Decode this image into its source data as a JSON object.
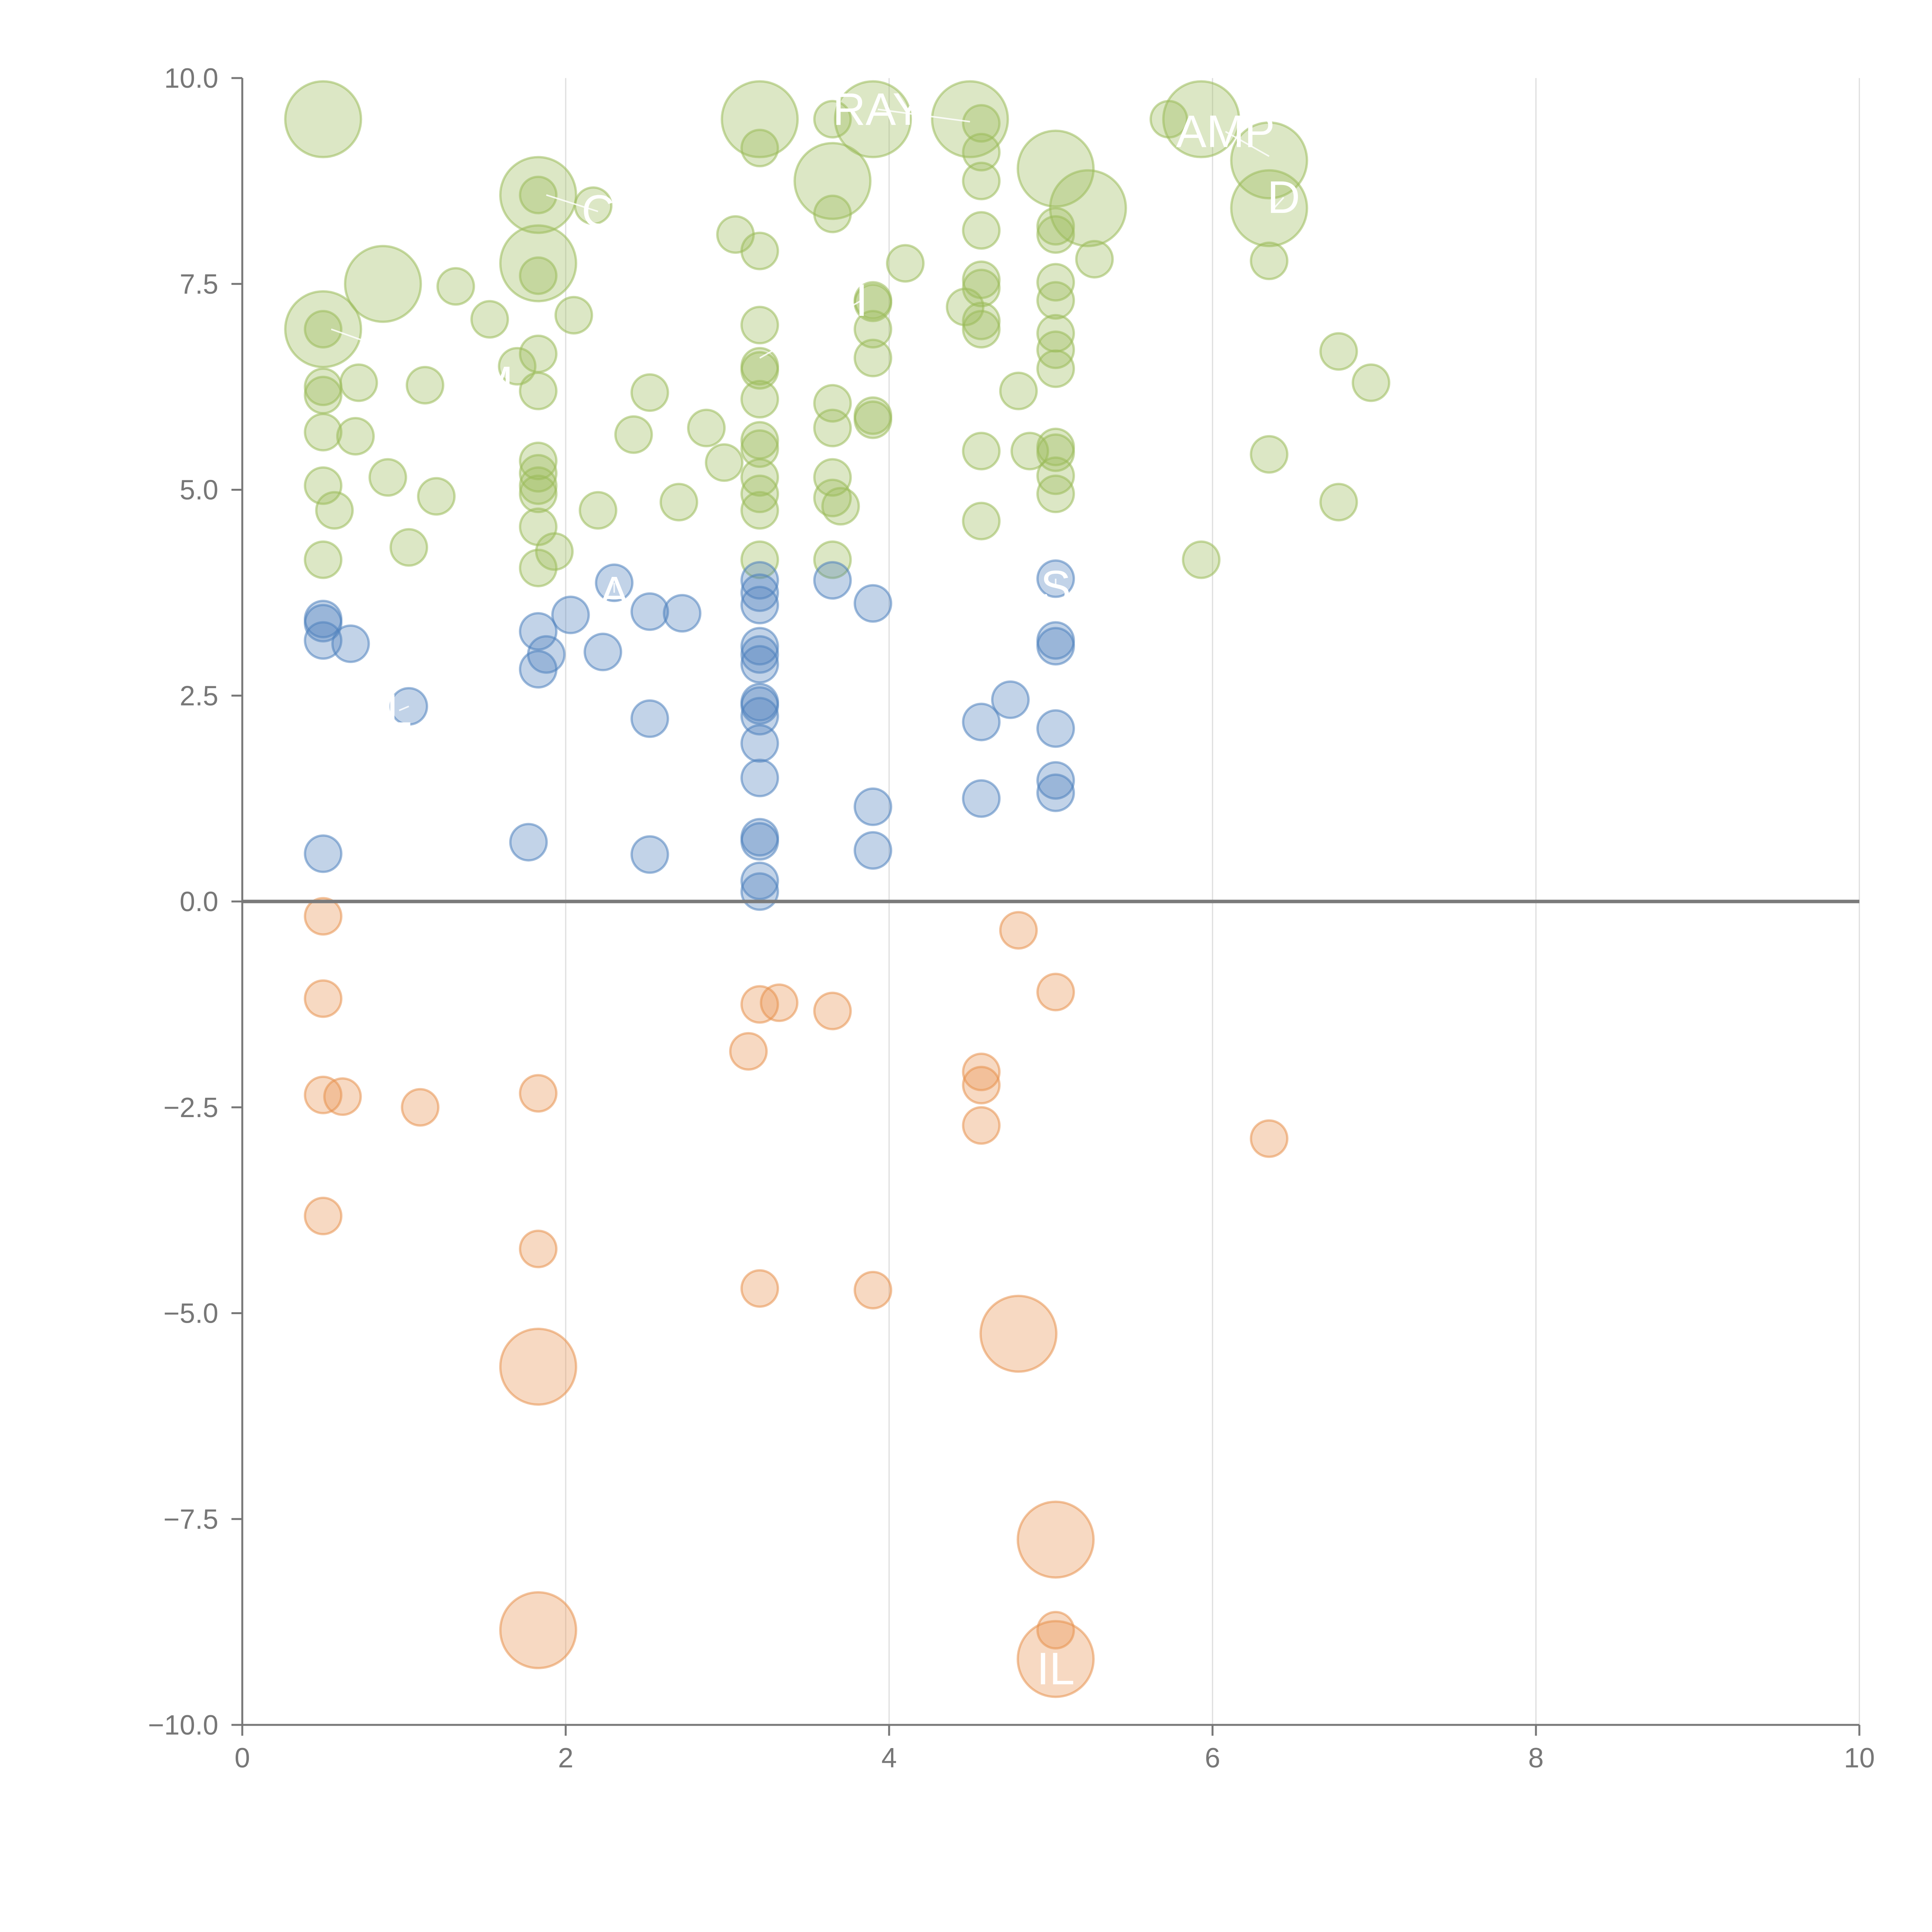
{
  "colors": {
    "positive_high": "#9bbb59",
    "positive_low": "#4f81bd",
    "negative": "#e8914f",
    "axis": "#777777",
    "grid": "#dddddd",
    "label": "#ffffff"
  },
  "chart_data": {
    "type": "scatter",
    "title": "",
    "xlabel": "",
    "ylabel": "",
    "xlim": [
      0,
      10
    ],
    "ylim": [
      -10,
      10
    ],
    "x_ticks": [
      0,
      2,
      4,
      6,
      8,
      10
    ],
    "y_ticks": [
      -10,
      -7.5,
      -5,
      -2.5,
      0,
      2.5,
      5,
      7.5,
      10
    ],
    "x_tick_labels": [
      "0",
      "2",
      "4",
      "6",
      "8",
      "10"
    ],
    "y_tick_labels": [
      "−10.0",
      "−7.5",
      "−5.0",
      "−2.5",
      "0.0",
      "2.5",
      "5.0",
      "7.5",
      "10.0"
    ],
    "grid": "vertical",
    "zero_line": true,
    "series": [
      {
        "name": "high",
        "color": "#9bbb59",
        "points": [
          [
            0.5,
            9.5,
            3
          ],
          [
            0.5,
            6.95,
            3
          ],
          [
            0.5,
            6.95,
            1
          ],
          [
            0.5,
            6.25,
            1
          ],
          [
            0.5,
            6.15,
            1
          ],
          [
            0.5,
            5.7,
            1
          ],
          [
            0.5,
            5.05,
            1
          ],
          [
            0.5,
            4.15,
            1
          ],
          [
            0.57,
            4.75,
            1
          ],
          [
            0.72,
            6.3,
            1
          ],
          [
            0.7,
            5.65,
            1
          ],
          [
            0.87,
            7.5,
            3
          ],
          [
            0.9,
            5.15,
            1
          ],
          [
            1.03,
            4.3,
            1
          ],
          [
            1.13,
            6.27,
            1
          ],
          [
            1.2,
            4.92,
            1
          ],
          [
            1.32,
            7.47,
            1
          ],
          [
            1.53,
            7.07,
            1
          ],
          [
            1.7,
            6.5,
            1
          ],
          [
            1.83,
            8.58,
            3
          ],
          [
            1.83,
            7.75,
            3
          ],
          [
            1.83,
            8.58,
            1
          ],
          [
            1.83,
            7.6,
            1
          ],
          [
            1.83,
            6.65,
            1
          ],
          [
            1.83,
            6.2,
            1
          ],
          [
            1.83,
            5.35,
            1
          ],
          [
            1.83,
            5.2,
            1
          ],
          [
            1.83,
            5.05,
            1
          ],
          [
            1.83,
            4.95,
            1
          ],
          [
            1.83,
            4.55,
            1
          ],
          [
            1.83,
            4.05,
            1
          ],
          [
            1.93,
            4.25,
            1
          ],
          [
            2.05,
            7.12,
            1
          ],
          [
            2.17,
            8.45,
            1
          ],
          [
            2.2,
            4.75,
            1
          ],
          [
            2.42,
            5.67,
            1
          ],
          [
            2.52,
            6.18,
            1
          ],
          [
            2.7,
            4.85,
            1
          ],
          [
            2.87,
            5.75,
            1
          ],
          [
            2.98,
            5.33,
            1
          ],
          [
            3.05,
            8.1,
            1
          ],
          [
            3.2,
            9.5,
            3
          ],
          [
            3.2,
            9.15,
            1
          ],
          [
            3.2,
            7.9,
            1
          ],
          [
            3.2,
            7.0,
            1
          ],
          [
            3.2,
            6.5,
            1
          ],
          [
            3.2,
            6.45,
            1
          ],
          [
            3.2,
            6.1,
            1
          ],
          [
            3.2,
            5.6,
            1
          ],
          [
            3.2,
            5.5,
            1
          ],
          [
            3.2,
            5.15,
            1
          ],
          [
            3.2,
            4.95,
            1
          ],
          [
            3.2,
            4.75,
            1
          ],
          [
            3.2,
            4.15,
            1
          ],
          [
            3.65,
            9.5,
            1
          ],
          [
            3.65,
            8.75,
            3
          ],
          [
            3.65,
            8.35,
            1
          ],
          [
            3.65,
            6.05,
            1
          ],
          [
            3.65,
            5.75,
            1
          ],
          [
            3.65,
            5.15,
            1
          ],
          [
            3.65,
            4.9,
            1
          ],
          [
            3.65,
            4.15,
            1
          ],
          [
            3.7,
            4.8,
            1
          ],
          [
            3.9,
            9.5,
            3
          ],
          [
            3.9,
            7.3,
            1
          ],
          [
            3.9,
            7.27,
            1
          ],
          [
            3.9,
            6.95,
            1
          ],
          [
            3.9,
            6.6,
            1
          ],
          [
            3.9,
            5.9,
            1
          ],
          [
            3.9,
            5.85,
            1
          ],
          [
            4.1,
            7.75,
            1
          ],
          [
            4.5,
            9.5,
            3
          ],
          [
            4.47,
            7.22,
            1
          ],
          [
            4.57,
            9.45,
            1
          ],
          [
            4.57,
            9.1,
            1
          ],
          [
            4.57,
            8.75,
            1
          ],
          [
            4.57,
            8.15,
            1
          ],
          [
            4.57,
            7.55,
            1
          ],
          [
            4.57,
            7.45,
            1
          ],
          [
            4.57,
            7.05,
            1
          ],
          [
            4.57,
            6.95,
            1
          ],
          [
            4.57,
            5.47,
            1
          ],
          [
            4.57,
            4.62,
            1
          ],
          [
            4.8,
            6.2,
            1
          ],
          [
            4.87,
            5.47,
            1
          ],
          [
            5.03,
            8.9,
            3
          ],
          [
            5.03,
            8.2,
            1
          ],
          [
            5.03,
            8.1,
            1
          ],
          [
            5.03,
            7.52,
            1
          ],
          [
            5.03,
            7.3,
            1
          ],
          [
            5.03,
            6.9,
            1
          ],
          [
            5.03,
            6.7,
            1
          ],
          [
            5.03,
            6.47,
            1
          ],
          [
            5.03,
            5.52,
            1
          ],
          [
            5.03,
            5.45,
            1
          ],
          [
            5.03,
            5.17,
            1
          ],
          [
            5.03,
            4.95,
            1
          ],
          [
            5.23,
            8.42,
            3
          ],
          [
            5.27,
            7.8,
            1
          ],
          [
            5.73,
            9.5,
            1
          ],
          [
            5.93,
            9.5,
            3
          ],
          [
            5.93,
            4.15,
            1
          ],
          [
            6.35,
            9.0,
            3
          ],
          [
            6.35,
            8.42,
            3
          ],
          [
            6.35,
            7.78,
            1
          ],
          [
            6.35,
            5.43,
            1
          ],
          [
            6.78,
            6.68,
            1
          ],
          [
            6.78,
            4.85,
            1
          ],
          [
            6.98,
            6.3,
            1
          ]
        ]
      },
      {
        "name": "low",
        "color": "#4f81bd",
        "points": [
          [
            0.5,
            3.43,
            1
          ],
          [
            0.5,
            3.38,
            1
          ],
          [
            0.5,
            3.17,
            1
          ],
          [
            0.5,
            0.58,
            1
          ],
          [
            0.67,
            3.13,
            1
          ],
          [
            1.03,
            2.37,
            1
          ],
          [
            1.77,
            0.72,
            1
          ],
          [
            1.83,
            3.28,
            1
          ],
          [
            1.83,
            2.82,
            1
          ],
          [
            1.88,
            3.0,
            1
          ],
          [
            2.03,
            3.48,
            1
          ],
          [
            2.23,
            3.03,
            1
          ],
          [
            2.3,
            3.87,
            1
          ],
          [
            2.52,
            3.52,
            1
          ],
          [
            2.52,
            2.22,
            1
          ],
          [
            2.52,
            0.57,
            1
          ],
          [
            2.72,
            3.5,
            1
          ],
          [
            3.2,
            3.9,
            1
          ],
          [
            3.2,
            3.75,
            1
          ],
          [
            3.2,
            3.6,
            1
          ],
          [
            3.2,
            3.1,
            1
          ],
          [
            3.2,
            3.0,
            1
          ],
          [
            3.2,
            2.88,
            1
          ],
          [
            3.2,
            2.42,
            1
          ],
          [
            3.2,
            2.38,
            1
          ],
          [
            3.2,
            2.25,
            1
          ],
          [
            3.2,
            1.92,
            1
          ],
          [
            3.2,
            1.5,
            1
          ],
          [
            3.2,
            0.78,
            1
          ],
          [
            3.2,
            0.73,
            1
          ],
          [
            3.2,
            0.25,
            1
          ],
          [
            3.2,
            0.12,
            1
          ],
          [
            3.65,
            3.9,
            1
          ],
          [
            3.9,
            3.62,
            1
          ],
          [
            3.9,
            1.15,
            1
          ],
          [
            3.9,
            0.62,
            1
          ],
          [
            4.57,
            2.18,
            1
          ],
          [
            4.57,
            1.25,
            1
          ],
          [
            4.75,
            2.45,
            1
          ],
          [
            5.03,
            3.92,
            1
          ],
          [
            5.03,
            3.17,
            1
          ],
          [
            5.03,
            3.1,
            1
          ],
          [
            5.03,
            2.1,
            1
          ],
          [
            5.03,
            1.47,
            1
          ],
          [
            5.03,
            1.32,
            1
          ]
        ]
      },
      {
        "name": "negative",
        "color": "#e8914f",
        "points": [
          [
            0.5,
            -0.18,
            1
          ],
          [
            0.5,
            -1.18,
            1
          ],
          [
            0.5,
            -2.35,
            1
          ],
          [
            0.5,
            -3.82,
            1
          ],
          [
            0.62,
            -2.37,
            1
          ],
          [
            1.1,
            -2.5,
            1
          ],
          [
            1.83,
            -2.33,
            1
          ],
          [
            1.83,
            -4.22,
            1
          ],
          [
            1.83,
            -5.65,
            3
          ],
          [
            1.83,
            -8.85,
            3
          ],
          [
            3.13,
            -1.82,
            1
          ],
          [
            3.2,
            -1.25,
            1
          ],
          [
            3.2,
            -4.7,
            1
          ],
          [
            3.32,
            -1.23,
            1
          ],
          [
            3.65,
            -1.33,
            1
          ],
          [
            3.9,
            -4.72,
            1
          ],
          [
            4.57,
            -2.07,
            1
          ],
          [
            4.57,
            -2.23,
            1
          ],
          [
            4.57,
            -2.72,
            1
          ],
          [
            4.8,
            -0.35,
            1
          ],
          [
            4.8,
            -5.25,
            3
          ],
          [
            5.03,
            -1.1,
            1
          ],
          [
            5.03,
            -7.75,
            3
          ],
          [
            5.03,
            -8.85,
            1
          ],
          [
            5.03,
            -9.2,
            3
          ],
          [
            6.35,
            -2.88,
            1
          ]
        ]
      }
    ],
    "annotations": [
      {
        "text": "RAY",
        "x": 3.93,
        "y": 9.62,
        "from": [
          4.5,
          9.47
        ]
      },
      {
        "text": "AMP",
        "x": 6.08,
        "y": 9.35,
        "from": [
          6.35,
          9.05
        ]
      },
      {
        "text": "D",
        "x": 6.44,
        "y": 8.55,
        "from": [
          6.38,
          8.42
        ]
      },
      {
        "text": "C",
        "x": 2.2,
        "y": 8.38,
        "from": [
          1.88,
          8.58
        ]
      },
      {
        "text": "LM",
        "x": 1.48,
        "y": 6.3,
        "from": [
          0.55,
          6.95
        ]
      },
      {
        "text": "I",
        "x": 3.83,
        "y": 7.3,
        "from": [
          3.2,
          6.6
        ]
      },
      {
        "text": "S",
        "x": 5.03,
        "y": 3.82,
        "from": [
          5.03,
          3.92
        ]
      },
      {
        "text": "L",
        "x": 0.97,
        "y": 2.32,
        "from": [
          1.03,
          2.37
        ]
      },
      {
        "text": "A",
        "x": 2.3,
        "y": 3.75,
        "from": [
          2.3,
          3.87
        ]
      },
      {
        "text": "IL",
        "x": 5.03,
        "y": -9.32,
        "from": [
          5.03,
          -9.2
        ]
      }
    ]
  }
}
